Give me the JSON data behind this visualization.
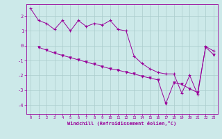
{
  "xlabel": "Windchill (Refroidissement éolien,°C)",
  "background_color": "#cce9e9",
  "line_color": "#990099",
  "grid_color": "#aacccc",
  "xlim": [
    -0.5,
    23.5
  ],
  "ylim": [
    -4.6,
    2.8
  ],
  "yticks": [
    -4,
    -3,
    -2,
    -1,
    0,
    1,
    2
  ],
  "xticks": [
    0,
    1,
    2,
    3,
    4,
    5,
    6,
    7,
    8,
    9,
    10,
    11,
    12,
    13,
    14,
    15,
    16,
    17,
    18,
    19,
    20,
    21,
    22,
    23
  ],
  "series1_x": [
    0,
    1,
    2,
    3,
    4,
    5,
    6,
    7,
    8,
    9,
    10,
    11,
    12,
    13,
    14,
    15,
    16,
    17,
    18,
    19,
    20,
    21,
    22,
    23
  ],
  "series1_y": [
    2.5,
    1.7,
    1.5,
    1.1,
    1.7,
    1.0,
    1.7,
    1.3,
    1.5,
    1.4,
    1.7,
    1.1,
    1.0,
    -0.7,
    -1.2,
    -1.55,
    -1.8,
    -1.9,
    -1.9,
    -3.2,
    -2.0,
    -3.3,
    -0.05,
    -0.35
  ],
  "series2_x": [
    1,
    2,
    3,
    4,
    5,
    6,
    7,
    8,
    9,
    10,
    11,
    12,
    13,
    14,
    15,
    16,
    17,
    18,
    19,
    20,
    21,
    22,
    23
  ],
  "series2_y": [
    -0.1,
    -0.3,
    -0.5,
    -0.65,
    -0.8,
    -0.95,
    -1.1,
    -1.25,
    -1.4,
    -1.55,
    -1.65,
    -1.78,
    -1.9,
    -2.05,
    -2.18,
    -2.3,
    -3.9,
    -2.5,
    -2.6,
    -2.9,
    -3.15,
    -0.1,
    -0.6
  ]
}
